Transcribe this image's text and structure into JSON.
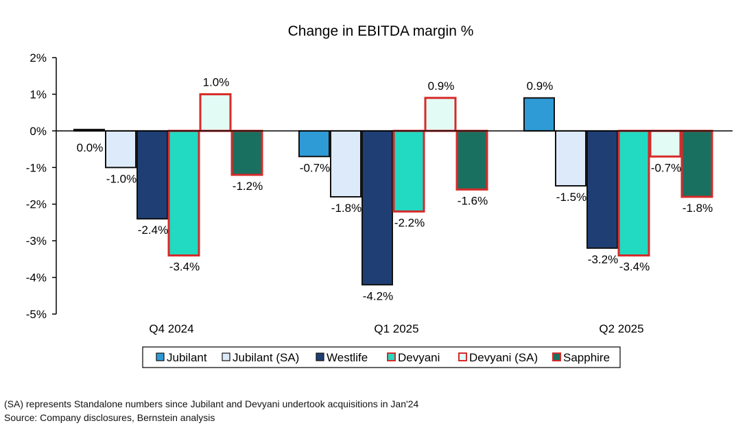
{
  "chart_data": {
    "type": "bar",
    "title": "Change in EBITDA margin %",
    "categories": [
      "Q4 2024",
      "Q1 2025",
      "Q2 2025"
    ],
    "ylim": [
      -5,
      2
    ],
    "yticks": [
      2,
      1,
      0,
      -1,
      -2,
      -3,
      -4,
      -5
    ],
    "ytick_labels": [
      "2%",
      "1%",
      "0%",
      "-1%",
      "-2%",
      "-3%",
      "-4%",
      "-5%"
    ],
    "grid": false,
    "legend_position": "bottom",
    "series": [
      {
        "name": "Jubilant",
        "values": [
          0.0,
          -0.7,
          0.9
        ],
        "labels": [
          "0.0%",
          "-0.7%",
          "0.9%"
        ],
        "fill": "#2f9bd6",
        "border": "#111111"
      },
      {
        "name": "Jubilant (SA)",
        "values": [
          -1.0,
          -1.8,
          -1.5
        ],
        "labels": [
          "-1.0%",
          "-1.8%",
          "-1.5%"
        ],
        "fill": "#ddeafa",
        "border": "#111111"
      },
      {
        "name": "Westlife",
        "values": [
          -2.4,
          -4.2,
          -3.2
        ],
        "labels": [
          "-2.4%",
          "-4.2%",
          "-3.2%"
        ],
        "fill": "#1f3f74",
        "border": "#111111"
      },
      {
        "name": "Devyani",
        "values": [
          -3.4,
          -2.2,
          -3.4
        ],
        "labels": [
          "-3.4%",
          "-2.2%",
          "-3.4%"
        ],
        "fill": "#22d9c2",
        "border": "#d62a2a"
      },
      {
        "name": "Devyani (SA)",
        "values": [
          1.0,
          0.9,
          -0.7
        ],
        "labels": [
          "1.0%",
          "0.9%",
          "-0.7%"
        ],
        "fill": "#e2fbf4",
        "border": "#d62a2a"
      },
      {
        "name": "Sapphire",
        "values": [
          -1.2,
          -1.6,
          -1.8
        ],
        "labels": [
          "-1.2%",
          "-1.6%",
          "-1.8%"
        ],
        "fill": "#1a7060",
        "border": "#d62a2a"
      }
    ]
  },
  "footnotes": [
    "(SA) represents Standalone numbers since Jubilant and Devyani undertook acquisitions in Jan'24",
    "Source: Company disclosures, Bernstein analysis"
  ]
}
